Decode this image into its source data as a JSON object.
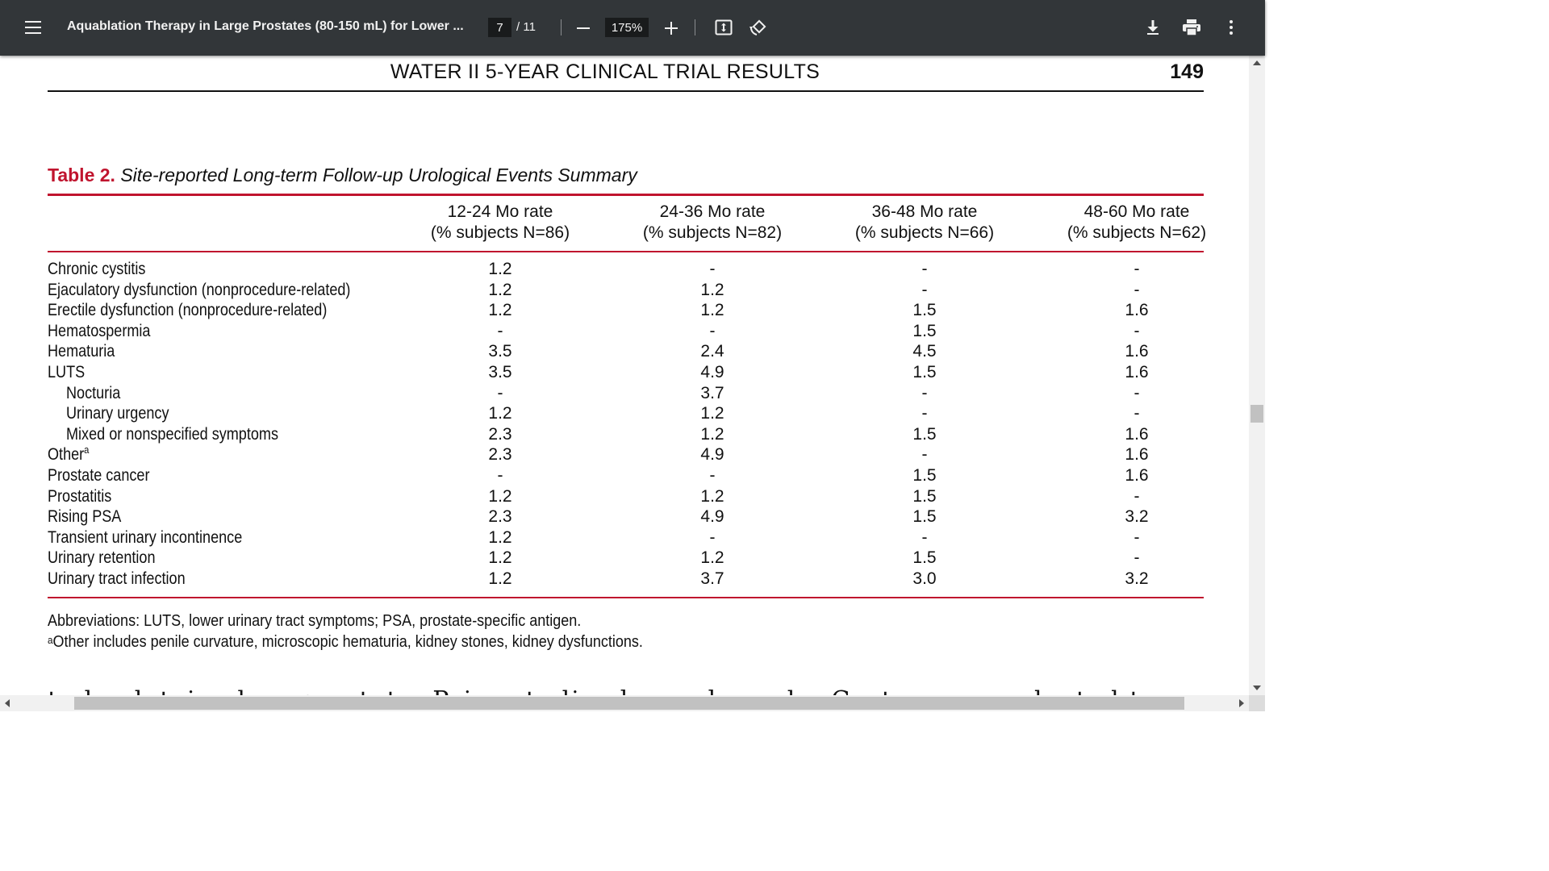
{
  "toolbar": {
    "doc_title": "Aquablation Therapy in Large Prostates (80-150 mL) for Lower ...",
    "page_current": "7",
    "page_total": "/ 11",
    "zoom": "175%",
    "icons": [
      "menu-icon",
      "minus-icon",
      "plus-icon",
      "fit-page-icon",
      "rotate-icon",
      "download-icon",
      "print-icon",
      "more-vert-icon"
    ],
    "bg_color": "#323639"
  },
  "page": {
    "running_head": "WATER II 5-YEAR CLINICAL TRIAL RESULTS",
    "page_number": "149",
    "caption_label": "Table 2.",
    "caption_title": "Site-reported Long-term Follow-up Urological Events Summary",
    "accent_color": "#c0142e",
    "columns": [
      {
        "line1": "12-24 Mo rate",
        "line2": "(% subjects N=86)"
      },
      {
        "line1": "24-36 Mo rate",
        "line2": "(% subjects N=82)"
      },
      {
        "line1": "36-48 Mo rate",
        "line2": "(% subjects N=66)"
      },
      {
        "line1": "48-60 Mo rate",
        "line2": "(% subjects N=62)"
      }
    ],
    "rows": [
      {
        "label": "Chronic cystitis",
        "sup": "",
        "indent": false,
        "values": [
          "1.2",
          "-",
          "-",
          "-"
        ]
      },
      {
        "label": "Ejaculatory dysfunction (nonprocedure-related)",
        "sup": "",
        "indent": false,
        "values": [
          "1.2",
          "1.2",
          "-",
          "-"
        ]
      },
      {
        "label": "Erectile dysfunction (nonprocedure-related)",
        "sup": "",
        "indent": false,
        "values": [
          "1.2",
          "1.2",
          "1.5",
          "1.6"
        ]
      },
      {
        "label": "Hematospermia",
        "sup": "",
        "indent": false,
        "values": [
          "-",
          "-",
          "1.5",
          "-"
        ]
      },
      {
        "label": "Hematuria",
        "sup": "",
        "indent": false,
        "values": [
          "3.5",
          "2.4",
          "4.5",
          "1.6"
        ]
      },
      {
        "label": "LUTS",
        "sup": "",
        "indent": false,
        "values": [
          "3.5",
          "4.9",
          "1.5",
          "1.6"
        ]
      },
      {
        "label": "Nocturia",
        "sup": "",
        "indent": true,
        "values": [
          "-",
          "3.7",
          "-",
          "-"
        ]
      },
      {
        "label": "Urinary urgency",
        "sup": "",
        "indent": true,
        "values": [
          "1.2",
          "1.2",
          "-",
          "-"
        ]
      },
      {
        "label": "Mixed or nonspecified symptoms",
        "sup": "",
        "indent": true,
        "values": [
          "2.3",
          "1.2",
          "1.5",
          "1.6"
        ]
      },
      {
        "label": "Other",
        "sup": "a",
        "indent": false,
        "values": [
          "2.3",
          "4.9",
          "-",
          "1.6"
        ]
      },
      {
        "label": "Prostate cancer",
        "sup": "",
        "indent": false,
        "values": [
          "-",
          "-",
          "1.5",
          "1.6"
        ]
      },
      {
        "label": "Prostatitis",
        "sup": "",
        "indent": false,
        "values": [
          "1.2",
          "1.2",
          "1.5",
          "-"
        ]
      },
      {
        "label": "Rising PSA",
        "sup": "",
        "indent": false,
        "values": [
          "2.3",
          "4.9",
          "1.5",
          "3.2"
        ]
      },
      {
        "label": "Transient urinary incontinence",
        "sup": "",
        "indent": false,
        "values": [
          "1.2",
          "-",
          "-",
          "-"
        ]
      },
      {
        "label": "Urinary retention",
        "sup": "",
        "indent": false,
        "values": [
          "1.2",
          "1.2",
          "1.5",
          "-"
        ]
      },
      {
        "label": "Urinary tract infection",
        "sup": "",
        "indent": false,
        "values": [
          "1.2",
          "3.7",
          "3.0",
          "3.2"
        ]
      }
    ],
    "footnote_abbrev": "Abbreviations: LUTS, lower urinary tract symptoms; PSA, prostate-specific antigen.",
    "footnote_a_mark": "a",
    "footnote_a_text": "Other includes penile curvature, microscopic hematuria, kidney stones, kidney dysfunctions.",
    "cut_body_text": "to be detained on prostate. Prior studies have showed a Costs was conducted to avoid large outcomes"
  }
}
